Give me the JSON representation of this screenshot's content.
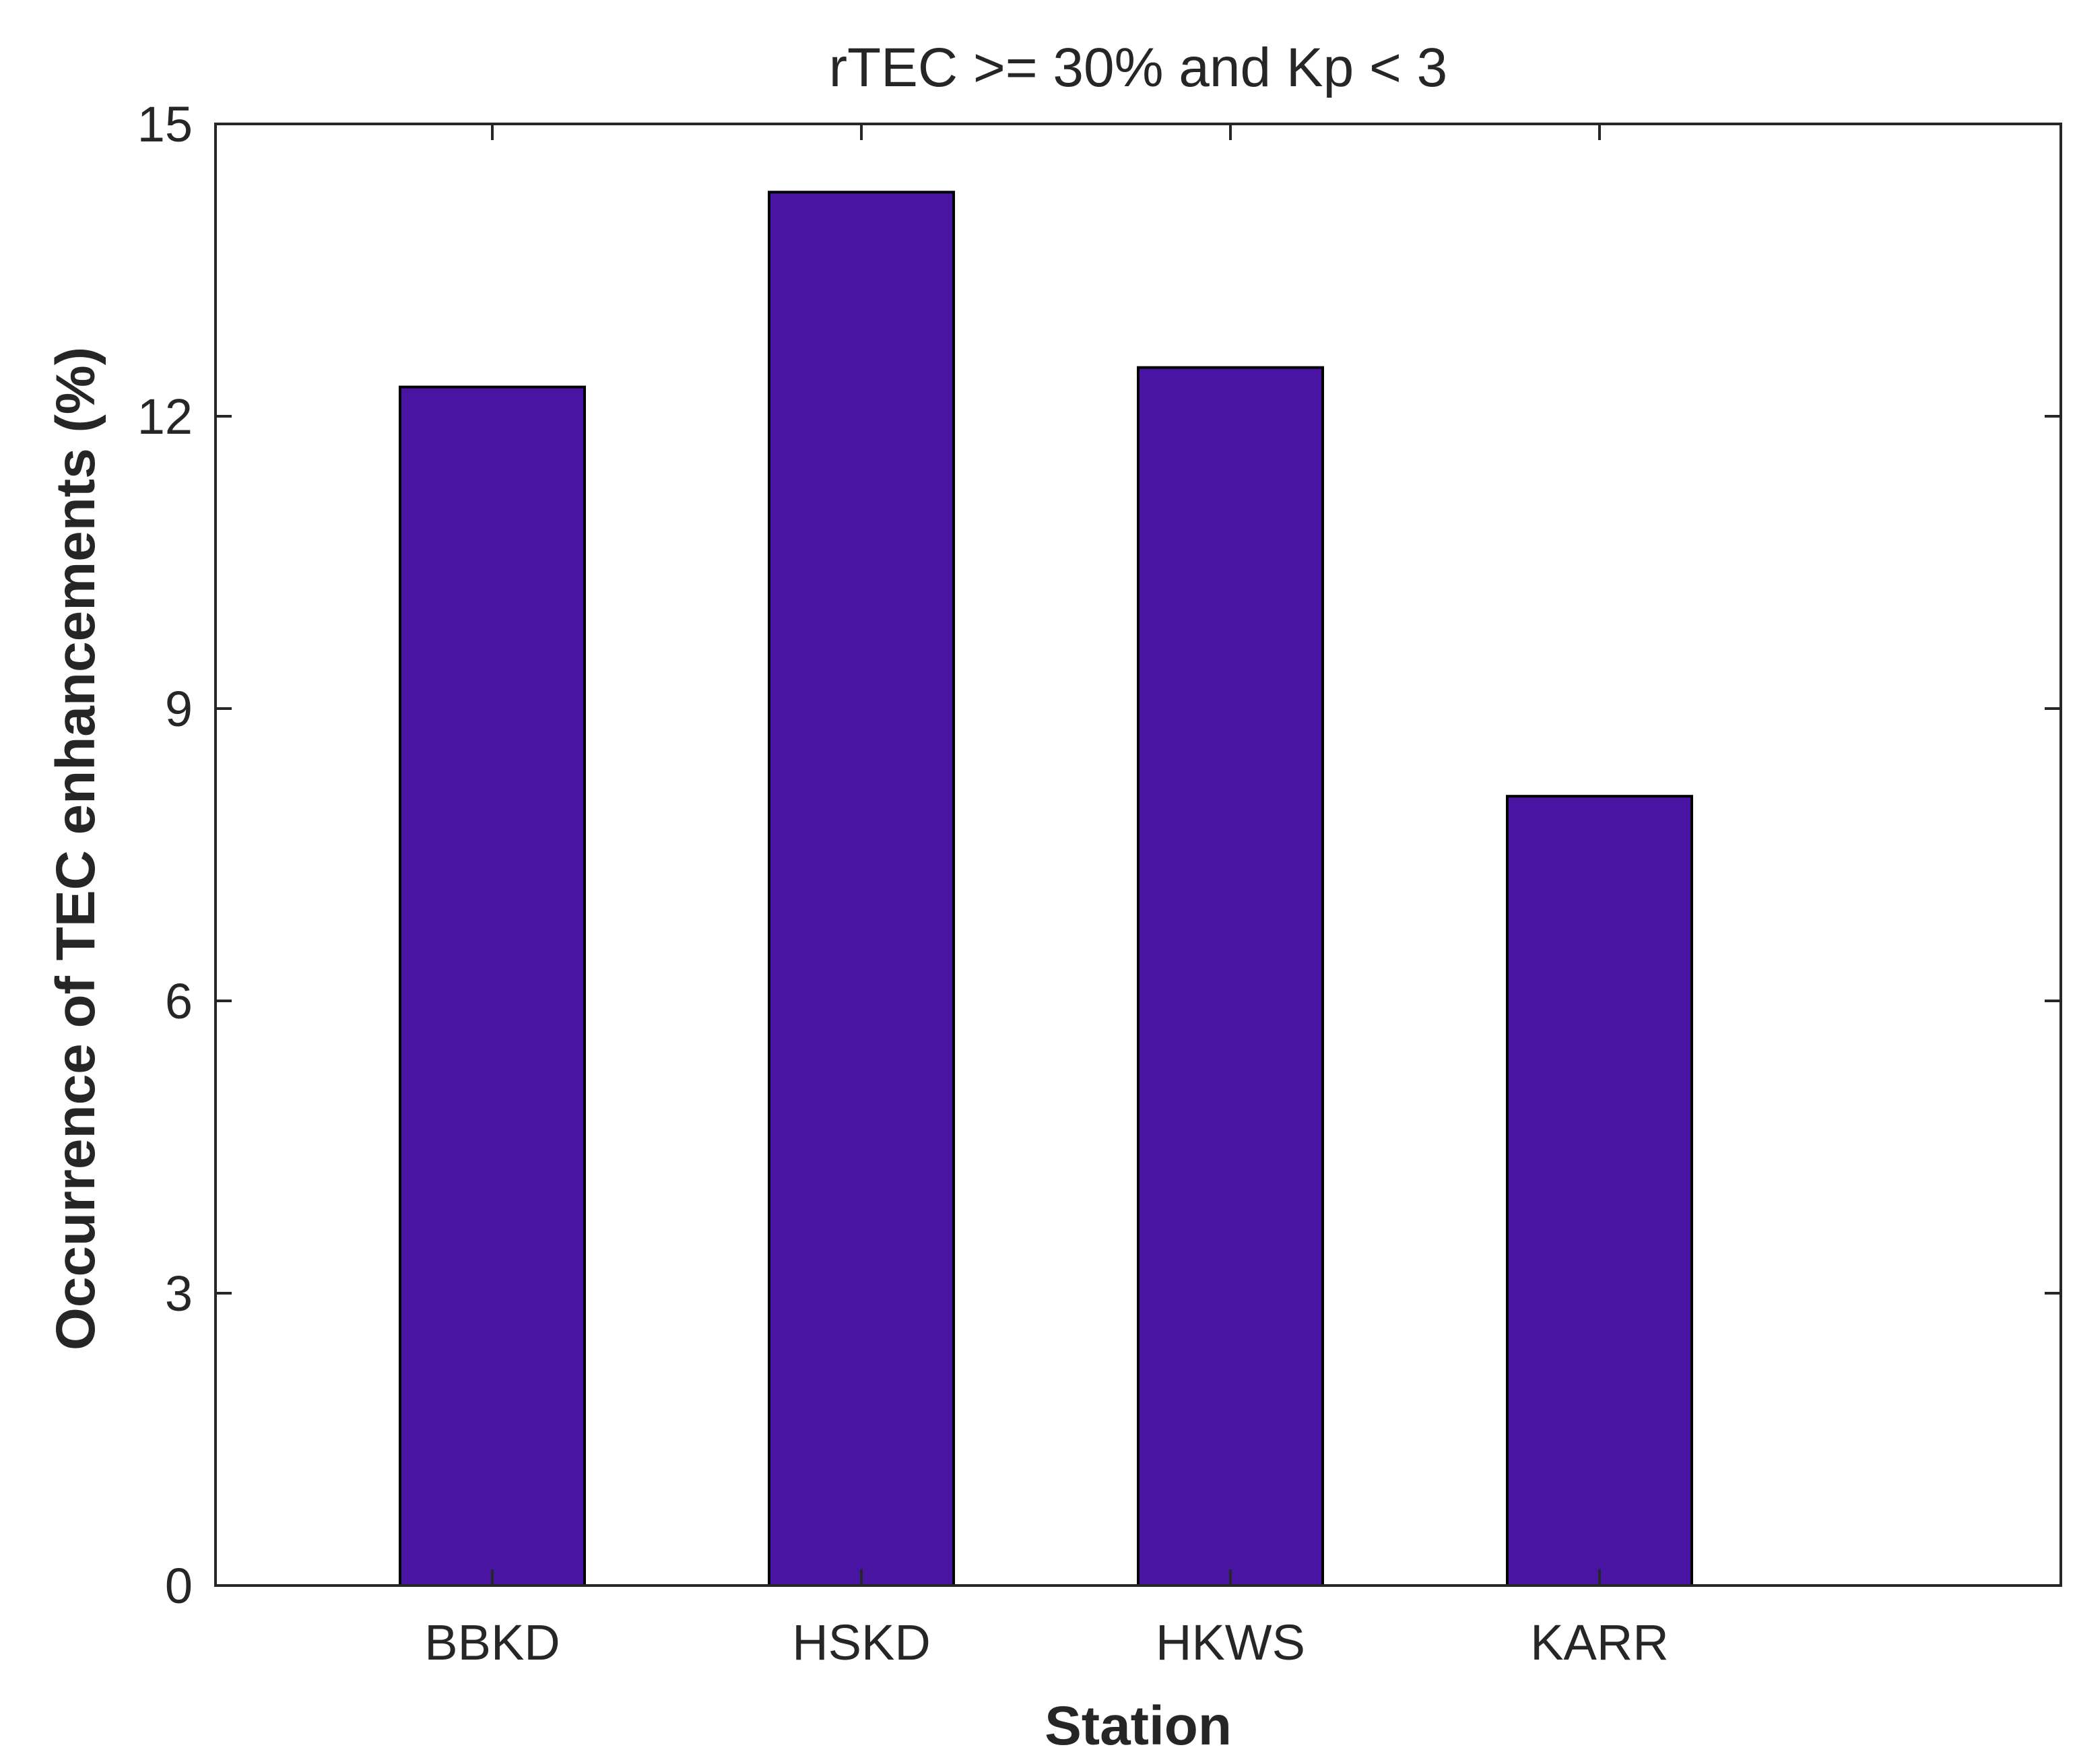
{
  "chart_data": {
    "type": "bar",
    "title": "rTEC >= 30% and Kp < 3",
    "xlabel": "Station",
    "ylabel": "Occurrence of TEC enhancements (%)",
    "categories": [
      "BBKD",
      "HSKD",
      "HKWS",
      "KARR"
    ],
    "values": [
      12.3,
      14.3,
      12.5,
      8.1
    ],
    "ylim": [
      0,
      15
    ],
    "yticks": [
      0,
      3,
      6,
      9,
      12,
      15
    ],
    "xlim": [
      0.25,
      5.25
    ],
    "grid": false,
    "legend": "none",
    "bar_color": "#4a14a3"
  }
}
